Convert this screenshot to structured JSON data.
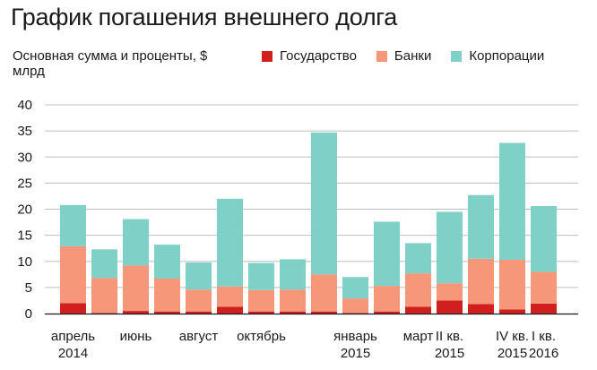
{
  "chart_data": {
    "type": "bar",
    "stacked": true,
    "title": "График погашения внешнего долга",
    "ylabel": "Основная сумма и проценты, $ млрд",
    "ylim": [
      0,
      40
    ],
    "yticks": [
      0,
      5,
      10,
      15,
      20,
      25,
      30,
      35,
      40
    ],
    "bar_count": 16,
    "x_labels": [
      {
        "bar": 0,
        "lines": [
          "апрель",
          "2014"
        ]
      },
      {
        "bar": 2,
        "lines": [
          "июнь"
        ]
      },
      {
        "bar": 4,
        "lines": [
          "август"
        ]
      },
      {
        "bar": 6,
        "lines": [
          "октябрь"
        ]
      },
      {
        "bar": 9,
        "lines": [
          "январь",
          "2015"
        ]
      },
      {
        "bar": 11,
        "lines": [
          "март"
        ]
      },
      {
        "bar": 12,
        "lines": [
          "II кв.",
          "2015"
        ]
      },
      {
        "bar": 14,
        "lines": [
          "IV кв.",
          "2015"
        ]
      },
      {
        "bar": 15,
        "lines": [
          "I кв.",
          "2016"
        ]
      }
    ],
    "series": [
      {
        "name": "Государство",
        "color": "#d11f1f",
        "values": [
          2.0,
          0.1,
          0.5,
          0.4,
          0.4,
          1.3,
          0.4,
          0.4,
          0.4,
          0.1,
          0.4,
          1.3,
          2.5,
          1.8,
          0.8,
          1.9
        ]
      },
      {
        "name": "Банки",
        "color": "#f7977a",
        "values": [
          10.9,
          6.7,
          8.7,
          6.3,
          4.2,
          3.9,
          4.1,
          4.2,
          7.1,
          2.8,
          4.9,
          6.4,
          3.3,
          8.7,
          9.5,
          6.1
        ]
      },
      {
        "name": "Корпорации",
        "color": "#7fd0c6",
        "values": [
          7.9,
          5.5,
          8.9,
          6.5,
          5.2,
          16.8,
          5.2,
          5.8,
          27.2,
          4.1,
          12.3,
          5.8,
          13.7,
          12.2,
          22.4,
          12.6
        ]
      }
    ],
    "grid": true
  }
}
